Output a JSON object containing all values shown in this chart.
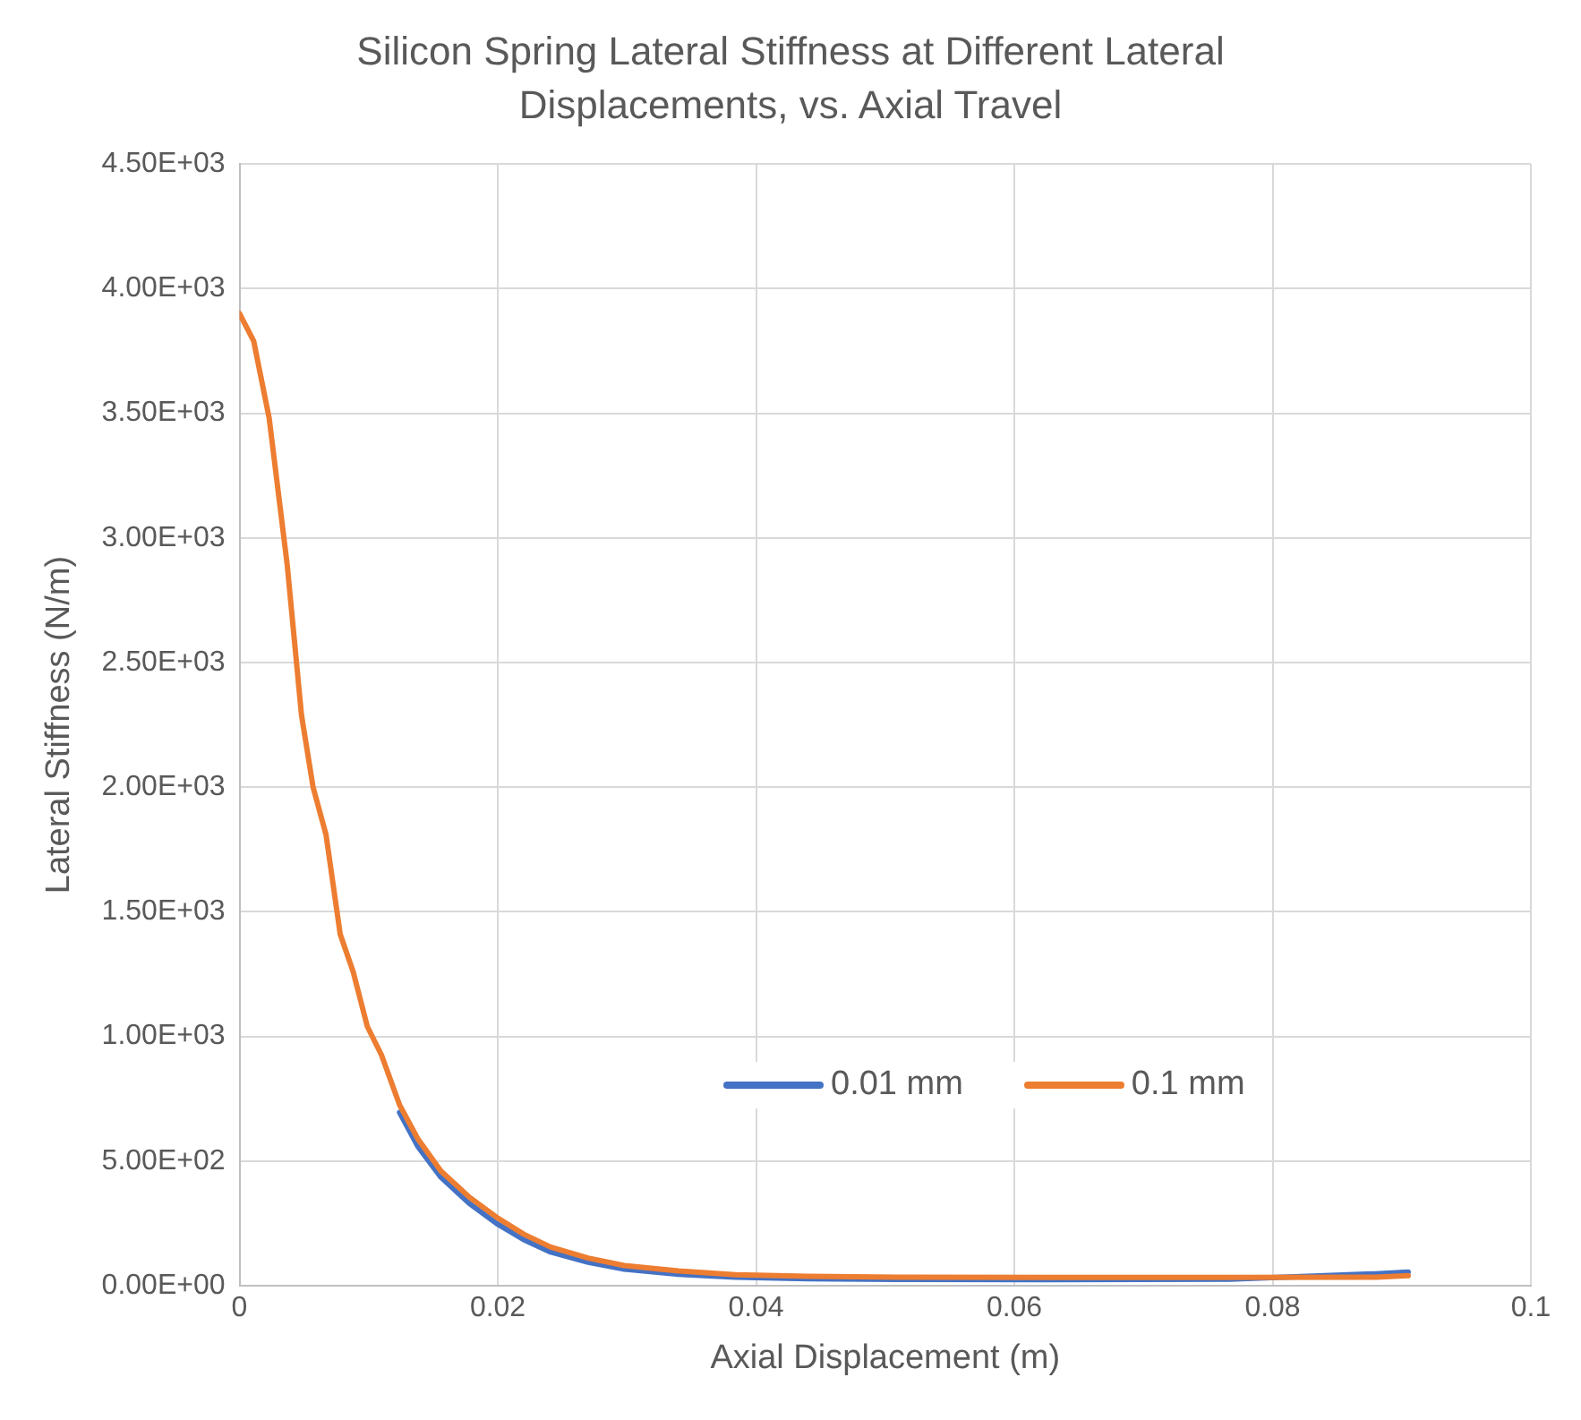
{
  "chart_data": {
    "type": "line",
    "title": "Silicon Spring Lateral Stiffness at Different Lateral Displacements, vs. Axial Travel",
    "xlabel": "Axial Displacement (m)",
    "ylabel": "Lateral Stiffness (N/m)",
    "x": [
      0,
      0.0011,
      0.0023,
      0.0037,
      0.0048,
      0.0057,
      0.0067,
      0.0078,
      0.0088,
      0.0099,
      0.011,
      0.0124,
      0.0138,
      0.0156,
      0.0178,
      0.0199,
      0.022,
      0.0241,
      0.027,
      0.0298,
      0.034,
      0.0384,
      0.044,
      0.051,
      0.0625,
      0.0767,
      0.088,
      0.0905
    ],
    "series": [
      {
        "name": "0.01 mm",
        "color": "#4472c4",
        "values": [
          null,
          null,
          null,
          null,
          null,
          null,
          null,
          null,
          null,
          null,
          null,
          695,
          560,
          435,
          330,
          250,
          185,
          135,
          94,
          66,
          46,
          34,
          28,
          25,
          24,
          26,
          48,
          55
        ]
      },
      {
        "name": "0.1 mm",
        "color": "#ed7d31",
        "values": [
          3900,
          3790,
          3480,
          2890,
          2290,
          2000,
          1810,
          1410,
          1260,
          1040,
          925,
          725,
          590,
          460,
          355,
          275,
          207,
          155,
          111,
          81,
          59,
          44,
          38,
          34,
          33,
          33,
          34,
          40
        ]
      }
    ],
    "xlim": [
      0,
      0.1
    ],
    "xticks": [
      0,
      0.02,
      0.04,
      0.06,
      0.08,
      0.1
    ],
    "ylim": [
      0,
      4500
    ],
    "yticks": [
      {
        "value": 0,
        "label": "0.00E+00"
      },
      {
        "value": 500,
        "label": "5.00E+02"
      },
      {
        "value": 1000,
        "label": "1.00E+03"
      },
      {
        "value": 1500,
        "label": "1.50E+03"
      },
      {
        "value": 2000,
        "label": "2.00E+03"
      },
      {
        "value": 2500,
        "label": "2.50E+03"
      },
      {
        "value": 3000,
        "label": "3.00E+03"
      },
      {
        "value": 3500,
        "label": "3.50E+03"
      },
      {
        "value": 4000,
        "label": "4.00E+03"
      },
      {
        "value": 4500,
        "label": "4.50E+03"
      }
    ],
    "grid": true,
    "legend": "bottom",
    "marker": "none",
    "line_style": "solid"
  }
}
